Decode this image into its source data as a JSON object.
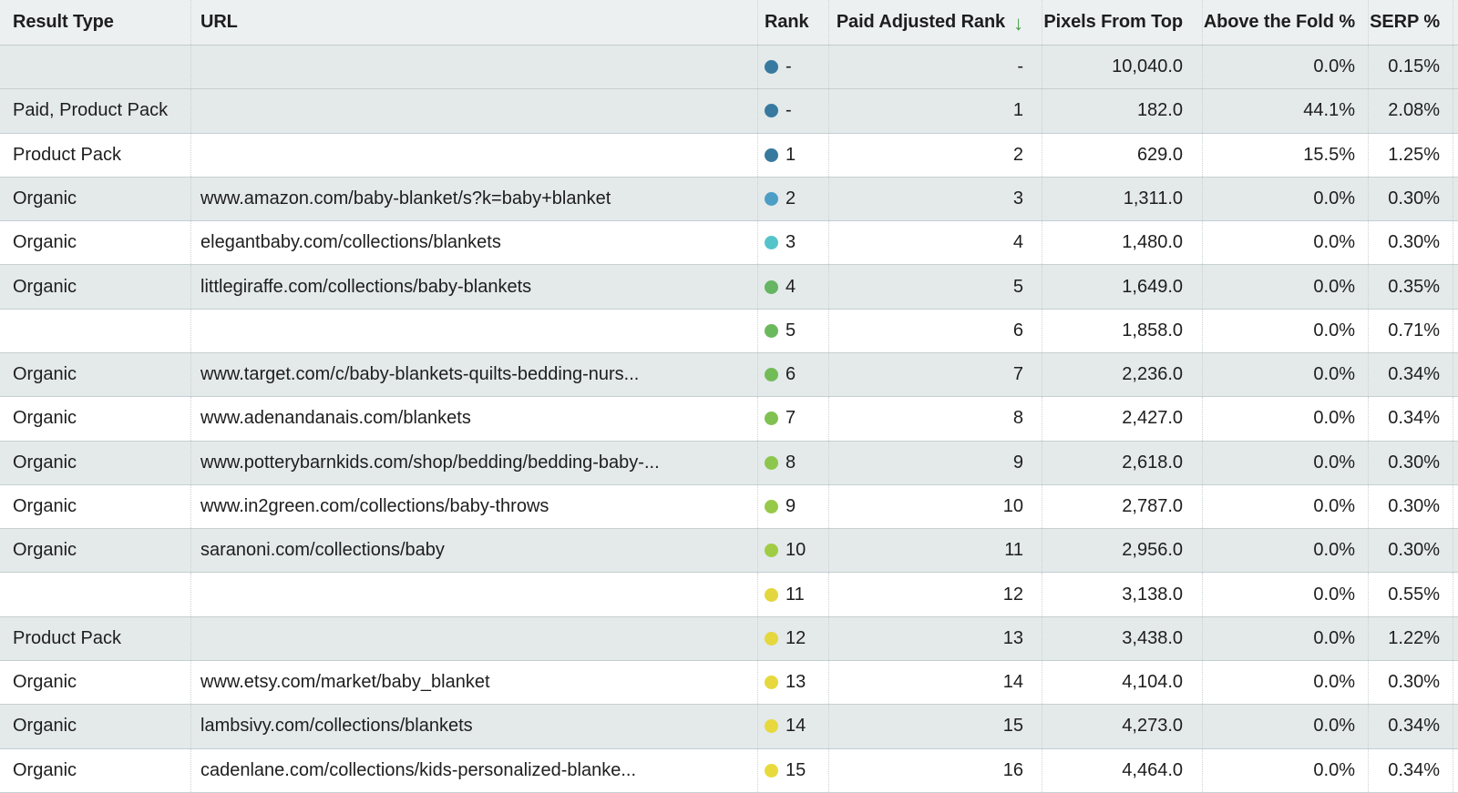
{
  "table": {
    "columns": [
      {
        "label": "Result Type",
        "align": "left"
      },
      {
        "label": "URL",
        "align": "left"
      },
      {
        "label": "Rank",
        "align": "left"
      },
      {
        "label": "Paid Adjusted Rank",
        "align": "right"
      },
      {
        "label": "Pixels From Top",
        "align": "right"
      },
      {
        "label": "Above the Fold %",
        "align": "right"
      },
      {
        "label": "SERP %",
        "align": "right"
      }
    ],
    "sort": {
      "column": "Paid Adjusted Rank",
      "direction": "descending",
      "arrow": "↓",
      "arrow_color": "#3f9a42"
    },
    "colors": {
      "header_bg": "#edf0f1",
      "row_band_bg": "#e4e9ea",
      "row_white_bg": "#ffffff",
      "row_separator": "#c6cfd2",
      "column_separator_dotted": "#c9d2d5",
      "text": "#1e1e1e"
    },
    "rows": [
      {
        "result_type": "",
        "url": "",
        "rank": "-",
        "rank_dot_color": "#38799f",
        "paid_adjusted_rank": "-",
        "pixels_from_top": "10,040.0",
        "above_fold_pct": "0.0%",
        "serp_pct": "0.15%",
        "band": "gray"
      },
      {
        "result_type": "Paid, Product Pack",
        "url": "",
        "rank": "-",
        "rank_dot_color": "#38799f",
        "paid_adjusted_rank": "1",
        "pixels_from_top": "182.0",
        "above_fold_pct": "44.1%",
        "serp_pct": "2.08%",
        "band": "gray"
      },
      {
        "result_type": "Product Pack",
        "url": "",
        "rank": "1",
        "rank_dot_color": "#38799f",
        "paid_adjusted_rank": "2",
        "pixels_from_top": "629.0",
        "above_fold_pct": "15.5%",
        "serp_pct": "1.25%",
        "band": "white"
      },
      {
        "result_type": "Organic",
        "url": "www.amazon.com/baby-blanket/s?k=baby+blanket",
        "rank": "2",
        "rank_dot_color": "#4d9ec5",
        "paid_adjusted_rank": "3",
        "pixels_from_top": "1,311.0",
        "above_fold_pct": "0.0%",
        "serp_pct": "0.30%",
        "band": "gray"
      },
      {
        "result_type": "Organic",
        "url": "elegantbaby.com/collections/blankets",
        "rank": "3",
        "rank_dot_color": "#55c4ca",
        "paid_adjusted_rank": "4",
        "pixels_from_top": "1,480.0",
        "above_fold_pct": "0.0%",
        "serp_pct": "0.30%",
        "band": "white"
      },
      {
        "result_type": "Organic",
        "url": "littlegiraffe.com/collections/baby-blankets",
        "rank": "4",
        "rank_dot_color": "#65b562",
        "paid_adjusted_rank": "5",
        "pixels_from_top": "1,649.0",
        "above_fold_pct": "0.0%",
        "serp_pct": "0.35%",
        "band": "gray"
      },
      {
        "result_type": "",
        "url": "",
        "rank": "5",
        "rank_dot_color": "#6bb95d",
        "paid_adjusted_rank": "6",
        "pixels_from_top": "1,858.0",
        "above_fold_pct": "0.0%",
        "serp_pct": "0.71%",
        "band": "white"
      },
      {
        "result_type": "Organic",
        "url": "www.target.com/c/baby-blankets-quilts-bedding-nurs...",
        "rank": "6",
        "rank_dot_color": "#72bc58",
        "paid_adjusted_rank": "7",
        "pixels_from_top": "2,236.0",
        "above_fold_pct": "0.0%",
        "serp_pct": "0.34%",
        "band": "gray"
      },
      {
        "result_type": "Organic",
        "url": "www.adenandanais.com/blankets",
        "rank": "7",
        "rank_dot_color": "#80c152",
        "paid_adjusted_rank": "8",
        "pixels_from_top": "2,427.0",
        "above_fold_pct": "0.0%",
        "serp_pct": "0.34%",
        "band": "white"
      },
      {
        "result_type": "Organic",
        "url": "www.potterybarnkids.com/shop/bedding/bedding-baby-...",
        "rank": "8",
        "rank_dot_color": "#8cc64d",
        "paid_adjusted_rank": "9",
        "pixels_from_top": "2,618.0",
        "above_fold_pct": "0.0%",
        "serp_pct": "0.30%",
        "band": "gray"
      },
      {
        "result_type": "Organic",
        "url": "www.in2green.com/collections/baby-throws",
        "rank": "9",
        "rank_dot_color": "#97c948",
        "paid_adjusted_rank": "10",
        "pixels_from_top": "2,787.0",
        "above_fold_pct": "0.0%",
        "serp_pct": "0.30%",
        "band": "white"
      },
      {
        "result_type": "Organic",
        "url": "saranoni.com/collections/baby",
        "rank": "10",
        "rank_dot_color": "#a0cc45",
        "paid_adjusted_rank": "11",
        "pixels_from_top": "2,956.0",
        "above_fold_pct": "0.0%",
        "serp_pct": "0.30%",
        "band": "gray"
      },
      {
        "result_type": "",
        "url": "",
        "rank": "11",
        "rank_dot_color": "#e3d63f",
        "paid_adjusted_rank": "12",
        "pixels_from_top": "3,138.0",
        "above_fold_pct": "0.0%",
        "serp_pct": "0.55%",
        "band": "white"
      },
      {
        "result_type": "Product Pack",
        "url": "",
        "rank": "12",
        "rank_dot_color": "#e5d73e",
        "paid_adjusted_rank": "13",
        "pixels_from_top": "3,438.0",
        "above_fold_pct": "0.0%",
        "serp_pct": "1.22%",
        "band": "gray"
      },
      {
        "result_type": "Organic",
        "url": "www.etsy.com/market/baby_blanket",
        "rank": "13",
        "rank_dot_color": "#e6d83e",
        "paid_adjusted_rank": "14",
        "pixels_from_top": "4,104.0",
        "above_fold_pct": "0.0%",
        "serp_pct": "0.30%",
        "band": "white"
      },
      {
        "result_type": "Organic",
        "url": "lambsivy.com/collections/blankets",
        "rank": "14",
        "rank_dot_color": "#e7d93d",
        "paid_adjusted_rank": "15",
        "pixels_from_top": "4,273.0",
        "above_fold_pct": "0.0%",
        "serp_pct": "0.34%",
        "band": "gray"
      },
      {
        "result_type": "Organic",
        "url": "cadenlane.com/collections/kids-personalized-blanke...",
        "rank": "15",
        "rank_dot_color": "#e8da3d",
        "paid_adjusted_rank": "16",
        "pixels_from_top": "4,464.0",
        "above_fold_pct": "0.0%",
        "serp_pct": "0.34%",
        "band": "white"
      }
    ]
  }
}
